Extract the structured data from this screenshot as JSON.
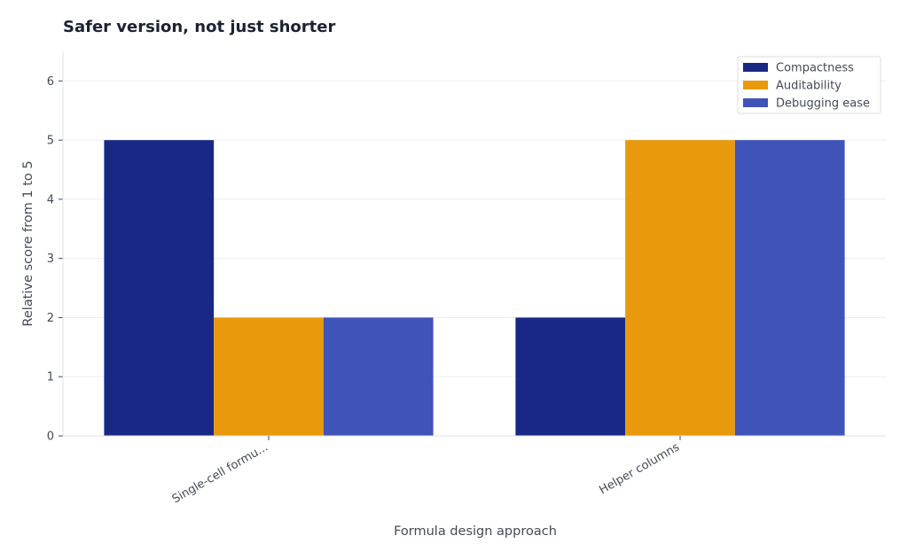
{
  "chart_data": {
    "type": "bar",
    "title": "Safer version, not just shorter",
    "xlabel": "Formula design approach",
    "ylabel": "Relative score from 1 to 5",
    "categories": [
      "Single-cell formu...",
      "Helper columns"
    ],
    "series": [
      {
        "name": "Compactness",
        "values": [
          5,
          2
        ],
        "color": "#182884"
      },
      {
        "name": "Auditability",
        "values": [
          2,
          5
        ],
        "color": "#e8990c"
      },
      {
        "name": "Debugging ease",
        "values": [
          2,
          5
        ],
        "color": "#3f53b9"
      }
    ],
    "ylim": [
      0,
      6.5
    ],
    "yticks": [
      0,
      1,
      2,
      3,
      4,
      5,
      6
    ],
    "grid": true,
    "legend_position": "top-right"
  }
}
